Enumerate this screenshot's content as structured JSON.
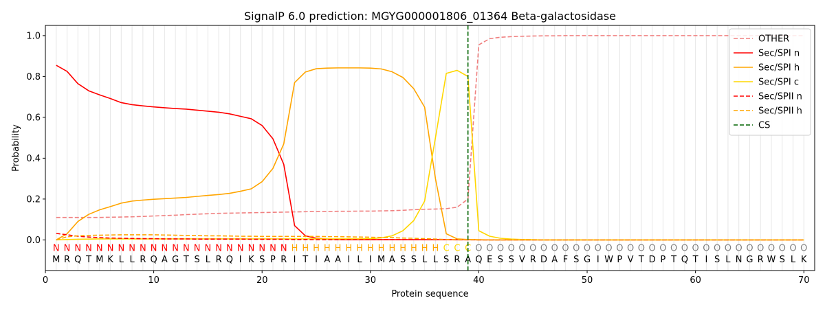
{
  "chart_data": {
    "type": "line",
    "title": "SignalP 6.0 prediction: MGYG000001806_01364 Beta-galactosidase",
    "xlabel": "Protein sequence",
    "ylabel": "Probability",
    "xlim": [
      0,
      71
    ],
    "ylim": [
      -0.15,
      1.05
    ],
    "x_ticks": [
      0,
      10,
      20,
      30,
      40,
      50,
      60,
      70
    ],
    "y_ticks": [
      0.0,
      0.2,
      0.4,
      0.6,
      0.8,
      1.0
    ],
    "x_tick_labels": [
      "0",
      "10",
      "20",
      "30",
      "40",
      "50",
      "60",
      "70"
    ],
    "y_tick_labels": [
      "0.0",
      "0.2",
      "0.4",
      "0.6",
      "0.8",
      "1.0"
    ],
    "grid": "vertical lines at each residue position",
    "legend_position": "top-right",
    "sequence": [
      "M",
      "R",
      "Q",
      "T",
      "M",
      "K",
      "L",
      "L",
      "R",
      "Q",
      "A",
      "G",
      "T",
      "S",
      "L",
      "R",
      "Q",
      "I",
      "K",
      "S",
      "P",
      "R",
      "I",
      "T",
      "I",
      "A",
      "A",
      "I",
      "L",
      "I",
      "M",
      "A",
      "S",
      "S",
      "L",
      "L",
      "S",
      "R",
      "A",
      "Q",
      "E",
      "S",
      "S",
      "V",
      "R",
      "D",
      "A",
      "F",
      "S",
      "G",
      "I",
      "W",
      "P",
      "V",
      "T",
      "D",
      "P",
      "T",
      "Q",
      "T",
      "I",
      "S",
      "L",
      "N",
      "G",
      "R",
      "W",
      "S",
      "L",
      "K"
    ],
    "labels": [
      "N",
      "N",
      "N",
      "N",
      "N",
      "N",
      "N",
      "N",
      "N",
      "N",
      "N",
      "N",
      "N",
      "N",
      "N",
      "N",
      "N",
      "N",
      "N",
      "N",
      "N",
      "N",
      "H",
      "H",
      "H",
      "H",
      "H",
      "H",
      "H",
      "H",
      "H",
      "H",
      "H",
      "H",
      "H",
      "H",
      "C",
      "C",
      "C",
      "O",
      "O",
      "O",
      "O",
      "O",
      "O",
      "O",
      "O",
      "O",
      "O",
      "O",
      "O",
      "O",
      "O",
      "O",
      "O",
      "O",
      "O",
      "O",
      "O",
      "O",
      "O",
      "O",
      "O",
      "O",
      "O",
      "O",
      "O",
      "O",
      "O",
      "O"
    ],
    "label_colors": {
      "N": "#ff0000",
      "H": "#ffa500",
      "C": "#ffd700",
      "O": "#808080"
    },
    "cs_position": 39,
    "series": [
      {
        "name": "OTHER",
        "color": "#f08080",
        "dash": "dashed",
        "values": [
          0.11,
          0.11,
          0.11,
          0.11,
          0.11,
          0.111,
          0.112,
          0.113,
          0.115,
          0.117,
          0.119,
          0.121,
          0.124,
          0.126,
          0.128,
          0.13,
          0.131,
          0.132,
          0.133,
          0.134,
          0.135,
          0.136,
          0.137,
          0.138,
          0.139,
          0.139,
          0.14,
          0.14,
          0.141,
          0.141,
          0.142,
          0.143,
          0.145,
          0.148,
          0.15,
          0.151,
          0.153,
          0.16,
          0.2,
          0.955,
          0.985,
          0.992,
          0.995,
          0.997,
          0.998,
          0.999,
          0.999,
          1.0,
          1.0,
          1.0,
          1.0,
          1.0,
          1.0,
          1.0,
          1.0,
          1.0,
          1.0,
          1.0,
          1.0,
          1.0,
          1.0,
          1.0,
          1.0,
          1.0,
          1.0,
          1.0,
          1.0,
          1.0,
          1.0,
          1.0
        ]
      },
      {
        "name": "Sec/SPI n",
        "color": "#ff0000",
        "dash": "solid",
        "values": [
          0.855,
          0.825,
          0.765,
          0.73,
          0.71,
          0.692,
          0.672,
          0.662,
          0.656,
          0.651,
          0.647,
          0.643,
          0.64,
          0.635,
          0.63,
          0.625,
          0.617,
          0.605,
          0.593,
          0.56,
          0.495,
          0.37,
          0.07,
          0.02,
          0.008,
          0.004,
          0.002,
          0.001,
          0.001,
          0.001,
          0.001,
          0.001,
          0.001,
          0.001,
          0.001,
          0.001,
          0.001,
          0.001,
          0.001,
          0.0,
          0.0,
          0.0,
          0.0,
          0.0,
          0.0,
          0.0,
          0.0,
          0.0,
          0.0,
          0.0,
          0.0,
          0.0,
          0.0,
          0.0,
          0.0,
          0.0,
          0.0,
          0.0,
          0.0,
          0.0,
          0.0,
          0.0,
          0.0,
          0.0,
          0.0,
          0.0,
          0.0,
          0.0,
          0.0,
          0.0
        ]
      },
      {
        "name": "Sec/SPI h",
        "color": "#ffa500",
        "dash": "solid",
        "values": [
          0.0,
          0.03,
          0.09,
          0.125,
          0.147,
          0.163,
          0.18,
          0.19,
          0.195,
          0.199,
          0.202,
          0.205,
          0.208,
          0.213,
          0.218,
          0.222,
          0.228,
          0.238,
          0.25,
          0.285,
          0.35,
          0.47,
          0.77,
          0.822,
          0.838,
          0.841,
          0.842,
          0.842,
          0.842,
          0.841,
          0.837,
          0.823,
          0.795,
          0.74,
          0.65,
          0.3,
          0.03,
          0.005,
          0.002,
          0.001,
          0.0,
          0.0,
          0.0,
          0.0,
          0.0,
          0.0,
          0.0,
          0.0,
          0.0,
          0.0,
          0.0,
          0.0,
          0.0,
          0.0,
          0.0,
          0.0,
          0.0,
          0.0,
          0.0,
          0.0,
          0.0,
          0.0,
          0.0,
          0.0,
          0.0,
          0.0,
          0.0,
          0.0,
          0.0,
          0.0
        ]
      },
      {
        "name": "Sec/SPI c",
        "color": "#ffd700",
        "dash": "solid",
        "values": [
          0.0,
          0.002,
          0.003,
          0.004,
          0.005,
          0.005,
          0.005,
          0.005,
          0.005,
          0.005,
          0.005,
          0.005,
          0.005,
          0.005,
          0.005,
          0.005,
          0.005,
          0.005,
          0.005,
          0.005,
          0.005,
          0.005,
          0.005,
          0.005,
          0.005,
          0.005,
          0.005,
          0.005,
          0.005,
          0.006,
          0.01,
          0.02,
          0.045,
          0.095,
          0.19,
          0.5,
          0.815,
          0.83,
          0.8,
          0.045,
          0.018,
          0.008,
          0.004,
          0.002,
          0.001,
          0.0,
          0.0,
          0.0,
          0.0,
          0.0,
          0.0,
          0.0,
          0.0,
          0.0,
          0.0,
          0.0,
          0.0,
          0.0,
          0.0,
          0.0,
          0.0,
          0.0,
          0.0,
          0.0,
          0.0,
          0.0,
          0.0,
          0.0,
          0.0,
          0.0
        ]
      },
      {
        "name": "Sec/SPII n",
        "color": "#ff0000",
        "dash": "dashed",
        "values": [
          0.032,
          0.025,
          0.018,
          0.014,
          0.011,
          0.009,
          0.008,
          0.007,
          0.006,
          0.006,
          0.005,
          0.005,
          0.005,
          0.004,
          0.004,
          0.004,
          0.004,
          0.004,
          0.003,
          0.003,
          0.003,
          0.003,
          0.002,
          0.002,
          0.001,
          0.001,
          0.001,
          0.001,
          0.001,
          0.001,
          0.001,
          0.001,
          0.001,
          0.001,
          0.001,
          0.001,
          0.001,
          0.0,
          0.0,
          0.0,
          0.0,
          0.0,
          0.0,
          0.0,
          0.0,
          0.0,
          0.0,
          0.0,
          0.0,
          0.0,
          0.0,
          0.0,
          0.0,
          0.0,
          0.0,
          0.0,
          0.0,
          0.0,
          0.0,
          0.0,
          0.0,
          0.0,
          0.0,
          0.0,
          0.0,
          0.0,
          0.0,
          0.0,
          0.0,
          0.0
        ]
      },
      {
        "name": "Sec/SPII h",
        "color": "#ffa500",
        "dash": "dashed",
        "values": [
          0.0,
          0.015,
          0.02,
          0.022,
          0.023,
          0.024,
          0.025,
          0.025,
          0.025,
          0.025,
          0.024,
          0.023,
          0.022,
          0.021,
          0.02,
          0.02,
          0.019,
          0.018,
          0.018,
          0.017,
          0.017,
          0.017,
          0.017,
          0.017,
          0.017,
          0.016,
          0.016,
          0.015,
          0.014,
          0.013,
          0.012,
          0.011,
          0.009,
          0.008,
          0.006,
          0.004,
          0.002,
          0.001,
          0.001,
          0.0,
          0.0,
          0.0,
          0.0,
          0.0,
          0.0,
          0.0,
          0.0,
          0.0,
          0.0,
          0.0,
          0.0,
          0.0,
          0.0,
          0.0,
          0.0,
          0.0,
          0.0,
          0.0,
          0.0,
          0.0,
          0.0,
          0.0,
          0.0,
          0.0,
          0.0,
          0.0,
          0.0,
          0.0,
          0.0,
          0.0
        ]
      }
    ],
    "legend": [
      {
        "name": "OTHER",
        "color": "#f08080",
        "dash": "dashed"
      },
      {
        "name": "Sec/SPI n",
        "color": "#ff0000",
        "dash": "solid"
      },
      {
        "name": "Sec/SPI h",
        "color": "#ffa500",
        "dash": "solid"
      },
      {
        "name": "Sec/SPI c",
        "color": "#ffd700",
        "dash": "solid"
      },
      {
        "name": "Sec/SPII n",
        "color": "#ff0000",
        "dash": "dashed"
      },
      {
        "name": "Sec/SPII h",
        "color": "#ffa500",
        "dash": "dashed"
      },
      {
        "name": "CS",
        "color": "#006400",
        "dash": "dashed"
      }
    ]
  }
}
